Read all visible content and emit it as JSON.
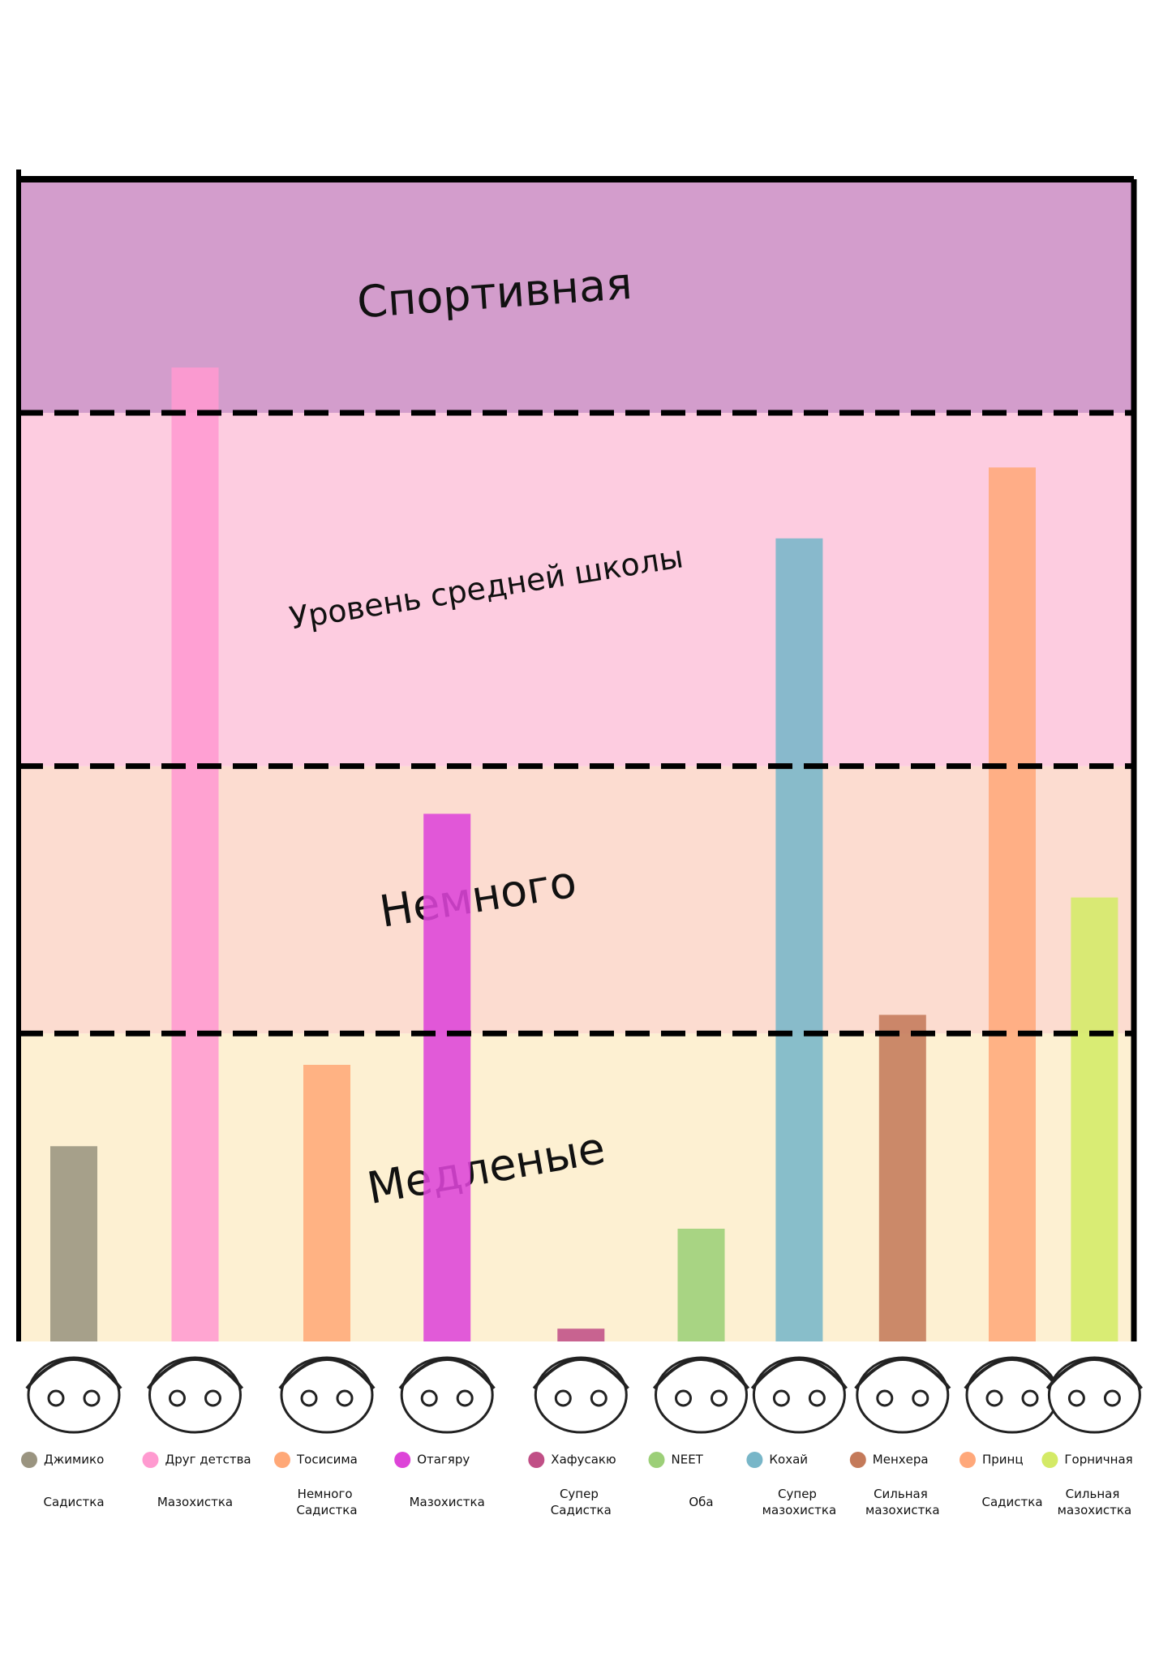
{
  "chart_data": {
    "type": "bar",
    "categories": [
      "Джимико",
      "Друг детства",
      "Тосисима",
      "Отагяру",
      "Хафусакю",
      "NEET",
      "Кохай",
      "Менхера",
      "Принц",
      "Горничная"
    ],
    "descriptions": [
      "Садистка",
      "Мазохистка",
      "Немного Садистка",
      "Мазохистка",
      "Супер Садистка",
      "Оба",
      "Супер мазохистка",
      "Сильная мазохистка",
      "Садистка",
      "Сильная мазохистка"
    ],
    "values": [
      16.8,
      83.8,
      23.8,
      45.4,
      1.1,
      9.7,
      69.1,
      28.1,
      75.2,
      38.2
    ],
    "colors": [
      "#9a9480",
      "#ff9ad0",
      "#ffa877",
      "#dd44d8",
      "#c04f86",
      "#9ccf78",
      "#78b6c8",
      "#c47a5a",
      "#ffa87a",
      "#d4ea66"
    ],
    "ylim": [
      0,
      100
    ],
    "bands": [
      {
        "label": "Медленые",
        "from": 0,
        "to": 26.5,
        "color": "#fdf0d2"
      },
      {
        "label": "Немного",
        "from": 26.5,
        "to": 49.5,
        "color": "#fcdcd0"
      },
      {
        "label": "Уровень средней школы",
        "from": 49.5,
        "to": 79.9,
        "color": "#fdcce0"
      },
      {
        "label": "Спортивная",
        "from": 79.9,
        "to": 100,
        "color": "#d39dcc"
      }
    ]
  }
}
